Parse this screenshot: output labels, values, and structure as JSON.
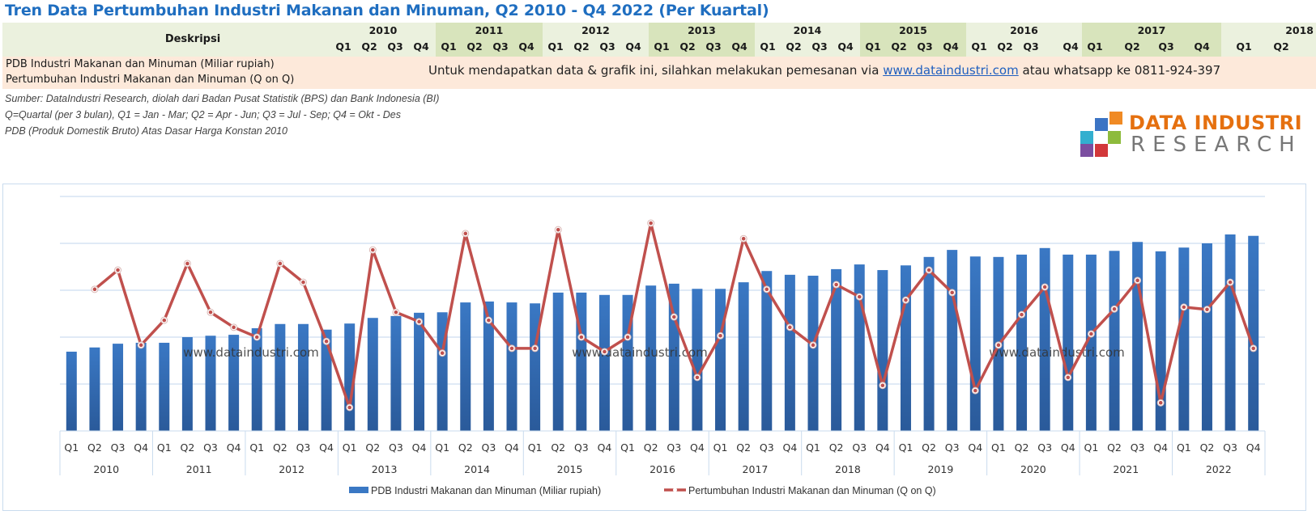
{
  "title": "Tren Data Pertumbuhan Industri Makanan dan Minuman, Q2 2010 - Q4 2022 (Per Kuartal)",
  "header_table": {
    "description_header": "Deskripsi",
    "years": [
      {
        "year": "2010",
        "quarters": [
          "Q1",
          "Q2",
          "Q3",
          "Q4"
        ]
      },
      {
        "year": "2011",
        "quarters": [
          "Q1",
          "Q2",
          "Q3",
          "Q4"
        ]
      },
      {
        "year": "2012",
        "quarters": [
          "Q1",
          "Q2",
          "Q3",
          "Q4"
        ]
      },
      {
        "year": "2013",
        "quarters": [
          "Q1",
          "Q2",
          "Q3",
          "Q4"
        ]
      },
      {
        "year": "2014",
        "quarters": [
          "Q1",
          "Q2",
          "Q3",
          "Q4"
        ]
      },
      {
        "year": "2015",
        "quarters": [
          "Q1",
          "Q2",
          "Q3",
          "Q4"
        ]
      },
      {
        "year": "2016",
        "quarters": [
          "Q1",
          "Q2",
          "Q3",
          "Q4"
        ]
      },
      {
        "year": "2017",
        "quarters": [
          "Q1",
          "Q2",
          "Q3",
          "Q4"
        ]
      },
      {
        "year": "2018",
        "quarters": [
          "Q1",
          "Q2"
        ]
      }
    ],
    "rows": [
      "PDB Industri Makanan dan Minuman (Miliar rupiah)",
      "Pertumbuhan Industri Makanan dan Minuman (Q on Q)"
    ],
    "message_prefix": "Untuk mendapatkan data & grafik ini, silahkan melakukan pemesanan via ",
    "message_link": "www.dataindustri.com",
    "message_suffix": " atau whatsapp ke 0811-924-397"
  },
  "notes": [
    "Sumber: DataIndustri Research, diolah dari Badan Pusat Statistik (BPS) dan Bank Indonesia (BI)",
    "Q=Quartal (per 3 bulan), Q1 = Jan - Mar; Q2 = Apr - Jun; Q3 = Jul - Sep; Q4 = Okt - Des",
    "PDB (Produk Domestik Bruto) Atas Dasar Harga Konstan 2010"
  ],
  "logo": {
    "line1": "DATA INDUSTRI",
    "line2": "RESEARCH"
  },
  "colors": {
    "bar": "#3A78C4",
    "bar_dark": "#2A5A9A",
    "line": "#C0504D",
    "grid": "#D6E4F3",
    "title": "#1F6EC0",
    "logo_orange": "#E5700F"
  },
  "chart_data": {
    "type": "bar",
    "combo": "bar+line",
    "title": "",
    "xlabel": "",
    "ylabel": "",
    "y_axis_labels_visible": false,
    "value_units": "relative gridline units (axis unlabeled)",
    "ylim": [
      0,
      5.2
    ],
    "grid": true,
    "legend_position": "bottom",
    "watermark": "www.dataindustri.com",
    "years": [
      "2010",
      "2011",
      "2012",
      "2013",
      "2014",
      "2015",
      "2016",
      "2017",
      "2018",
      "2019",
      "2020",
      "2021",
      "2022"
    ],
    "quarters": [
      "Q1",
      "Q2",
      "Q3",
      "Q4"
    ],
    "series": [
      {
        "name": "PDB Industri Makanan dan Minuman (Miliar rupiah)",
        "type": "bar",
        "values": [
          1.69,
          1.78,
          1.86,
          1.88,
          1.88,
          2.0,
          2.03,
          2.05,
          2.19,
          2.28,
          2.28,
          2.16,
          2.29,
          2.41,
          2.45,
          2.52,
          2.53,
          2.74,
          2.76,
          2.74,
          2.72,
          2.95,
          2.95,
          2.9,
          2.9,
          3.1,
          3.14,
          3.03,
          3.03,
          3.17,
          3.41,
          3.33,
          3.31,
          3.45,
          3.55,
          3.43,
          3.53,
          3.71,
          3.86,
          3.72,
          3.71,
          3.76,
          3.9,
          3.76,
          3.76,
          3.84,
          4.03,
          3.83,
          3.91,
          4.0,
          4.19,
          4.16
        ]
      },
      {
        "name": "Pertumbuhan Industri Makanan dan Minuman (Q on Q)",
        "type": "line",
        "values": [
          null,
          3.02,
          3.43,
          1.83,
          2.36,
          3.57,
          2.53,
          2.21,
          2.0,
          3.57,
          3.17,
          1.91,
          0.5,
          3.86,
          2.53,
          2.33,
          1.66,
          4.21,
          2.36,
          1.76,
          1.76,
          4.29,
          2.0,
          1.69,
          2.0,
          4.43,
          2.43,
          1.14,
          2.03,
          4.1,
          3.02,
          2.21,
          1.83,
          3.12,
          2.86,
          0.97,
          2.79,
          3.43,
          2.95,
          0.86,
          1.83,
          2.48,
          3.07,
          1.14,
          2.07,
          2.6,
          3.21,
          0.6,
          2.64,
          2.59,
          3.17,
          1.76
        ]
      }
    ]
  }
}
